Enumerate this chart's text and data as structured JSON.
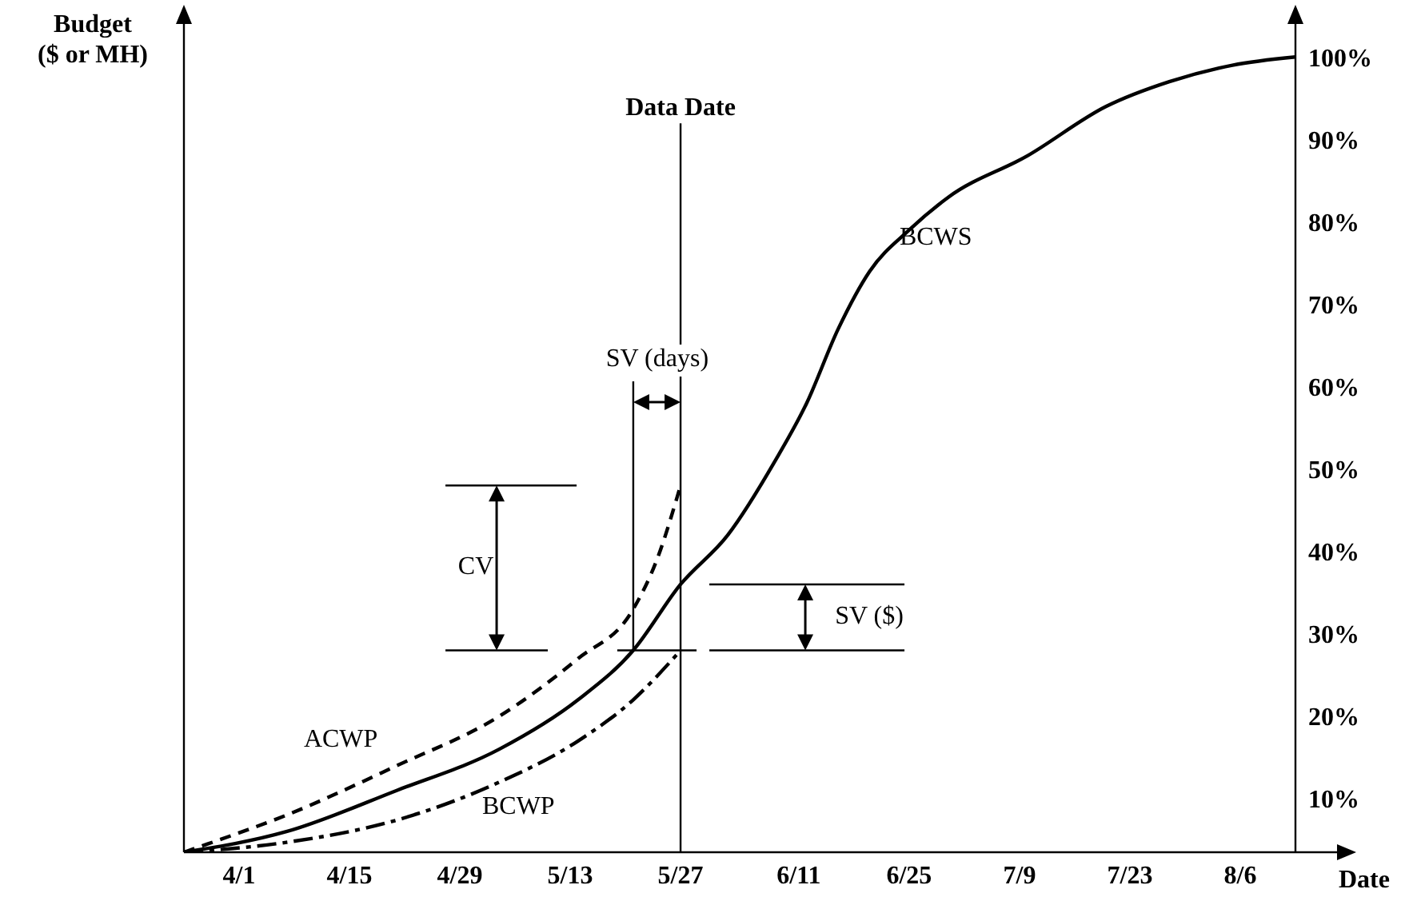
{
  "chart_data": {
    "type": "line",
    "xlabel": "Date",
    "ylabel": "Budget ($ or MH)",
    "xlim": [
      "--03-25",
      "--08-13"
    ],
    "xticks": [
      {
        "value": "--04-01",
        "label": "4/1"
      },
      {
        "value": "--04-15",
        "label": "4/15"
      },
      {
        "value": "--04-29",
        "label": "4/29"
      },
      {
        "value": "--05-13",
        "label": "5/13"
      },
      {
        "value": "--05-27",
        "label": "5/27"
      },
      {
        "value": "--06-11",
        "label": "6/11"
      },
      {
        "value": "--06-25",
        "label": "6/25"
      },
      {
        "value": "--07-09",
        "label": "7/9"
      },
      {
        "value": "--07-23",
        "label": "7/23"
      },
      {
        "value": "--08-06",
        "label": "8/6"
      }
    ],
    "ylim": [
      3.5,
      104
    ],
    "yticks": [
      {
        "value": 10,
        "label": "10%"
      },
      {
        "value": 20,
        "label": "20%"
      },
      {
        "value": 30,
        "label": "30%"
      },
      {
        "value": 40,
        "label": "40%"
      },
      {
        "value": 50,
        "label": "50%"
      },
      {
        "value": 60,
        "label": "60%"
      },
      {
        "value": 70,
        "label": "70%"
      },
      {
        "value": 80,
        "label": "80%"
      },
      {
        "value": 90,
        "label": "90%"
      },
      {
        "value": 100,
        "label": "100%"
      }
    ],
    "series": [
      {
        "name": "BCWS",
        "color": "#000000",
        "line_style": "solid",
        "x": [
          "--03-25",
          "--04-07",
          "--04-21",
          "--05-04",
          "--05-14",
          "--05-21",
          "--05-27",
          "--06-02",
          "--06-08",
          "--06-12",
          "--06-16",
          "--06-20",
          "--06-25",
          "--06-30",
          "--07-10",
          "--07-20",
          "--07-28",
          "--08-05",
          "--08-13"
        ],
        "values": [
          3.5,
          6,
          11,
          16,
          22,
          28,
          36,
          42,
          51,
          58,
          67,
          74,
          79,
          83,
          88,
          94,
          97,
          99,
          100
        ]
      },
      {
        "name": "ACWP",
        "color": "#000000",
        "line_style": "dashed",
        "x": [
          "--03-25",
          "--03-28",
          "--04-07",
          "--04-21",
          "--05-04",
          "--05-14",
          "--05-21",
          "--05-24",
          "--05-27"
        ],
        "values": [
          3.5,
          4.5,
          8,
          14,
          20,
          27,
          33,
          39,
          48
        ]
      },
      {
        "name": "BCWP",
        "color": "#000000",
        "line_style": "dashdot",
        "x": [
          "--03-25",
          "--04-07",
          "--04-21",
          "--05-04",
          "--05-14",
          "--05-21",
          "--05-27"
        ],
        "values": [
          3.5,
          4.7,
          7.4,
          12,
          17,
          22,
          28
        ]
      }
    ],
    "ref_lines": [
      {
        "axis": "x",
        "value": "--05-27",
        "label": "Data Date",
        "color": "#000000",
        "line_style": "solid"
      }
    ],
    "annotations": [
      "CV",
      {
        "text": "SV (days)",
        "x": "--05-21",
        "y": 28
      },
      "SV ($)"
    ]
  }
}
